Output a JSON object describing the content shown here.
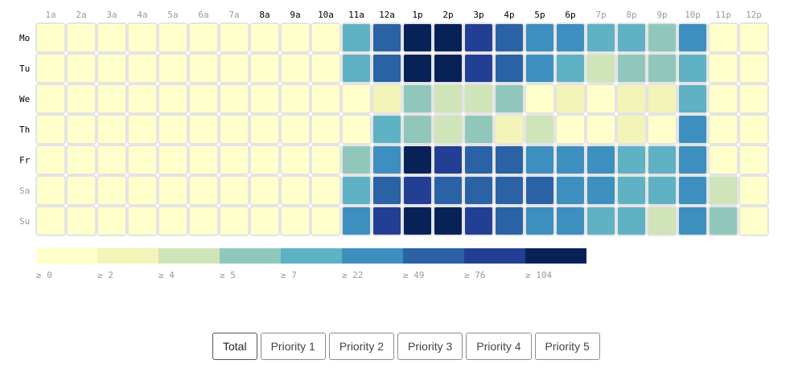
{
  "chart_data": {
    "type": "heatmap",
    "hours": [
      "1a",
      "2a",
      "3a",
      "4a",
      "5a",
      "6a",
      "7a",
      "8a",
      "9a",
      "10a",
      "11a",
      "12a",
      "1p",
      "2p",
      "3p",
      "4p",
      "5p",
      "6p",
      "7p",
      "8p",
      "9p",
      "10p",
      "11p",
      "12p"
    ],
    "days": [
      "Mo",
      "Tu",
      "We",
      "Th",
      "Fr",
      "Sa",
      "Su"
    ],
    "weekend_days": [
      "Sa",
      "Su"
    ],
    "emphasized_hours": [
      "8a",
      "9a",
      "10a",
      "11a",
      "12a",
      "1p",
      "2p",
      "3p",
      "4p",
      "5p",
      "6p"
    ],
    "thresholds": [
      0,
      2,
      4,
      5,
      7,
      22,
      49,
      76,
      104
    ],
    "legend_labels": [
      "≥ 0",
      "≥ 2",
      "≥ 4",
      "≥ 5",
      "≥ 7",
      "≥ 22",
      "≥ 49",
      "≥ 76",
      "≥ 104"
    ],
    "colors": [
      "#ffffcc",
      "#f2f4b8",
      "#cfe4b8",
      "#91c7bb",
      "#5fb1c4",
      "#3d8fc0",
      "#2b62a6",
      "#233f94",
      "#082257"
    ],
    "bins": [
      [
        0,
        0,
        0,
        0,
        0,
        0,
        0,
        0,
        0,
        0,
        4,
        6,
        8,
        8,
        7,
        6,
        5,
        5,
        4,
        4,
        3,
        5,
        0,
        0
      ],
      [
        0,
        0,
        0,
        0,
        0,
        0,
        0,
        0,
        0,
        0,
        4,
        6,
        8,
        8,
        7,
        6,
        5,
        4,
        2,
        3,
        3,
        4,
        0,
        0
      ],
      [
        0,
        0,
        0,
        0,
        0,
        0,
        0,
        0,
        0,
        0,
        0,
        1,
        3,
        2,
        2,
        3,
        0,
        1,
        0,
        1,
        1,
        4,
        0,
        0
      ],
      [
        0,
        0,
        0,
        0,
        0,
        0,
        0,
        0,
        0,
        0,
        0,
        4,
        3,
        2,
        3,
        1,
        2,
        0,
        0,
        1,
        0,
        5,
        0,
        0
      ],
      [
        0,
        0,
        0,
        0,
        0,
        0,
        0,
        0,
        0,
        0,
        3,
        5,
        8,
        7,
        6,
        6,
        5,
        5,
        5,
        4,
        4,
        5,
        0,
        0
      ],
      [
        0,
        0,
        0,
        0,
        0,
        0,
        0,
        0,
        0,
        0,
        4,
        6,
        7,
        6,
        6,
        6,
        6,
        5,
        5,
        4,
        4,
        5,
        2,
        0
      ],
      [
        0,
        0,
        0,
        0,
        0,
        0,
        0,
        0,
        0,
        0,
        5,
        7,
        8,
        8,
        7,
        6,
        5,
        5,
        4,
        4,
        2,
        5,
        3,
        0
      ]
    ]
  },
  "buttons": [
    {
      "label": "Total",
      "active": true
    },
    {
      "label": "Priority 1",
      "active": false
    },
    {
      "label": "Priority 2",
      "active": false
    },
    {
      "label": "Priority 3",
      "active": false
    },
    {
      "label": "Priority 4",
      "active": false
    },
    {
      "label": "Priority 5",
      "active": false
    }
  ]
}
